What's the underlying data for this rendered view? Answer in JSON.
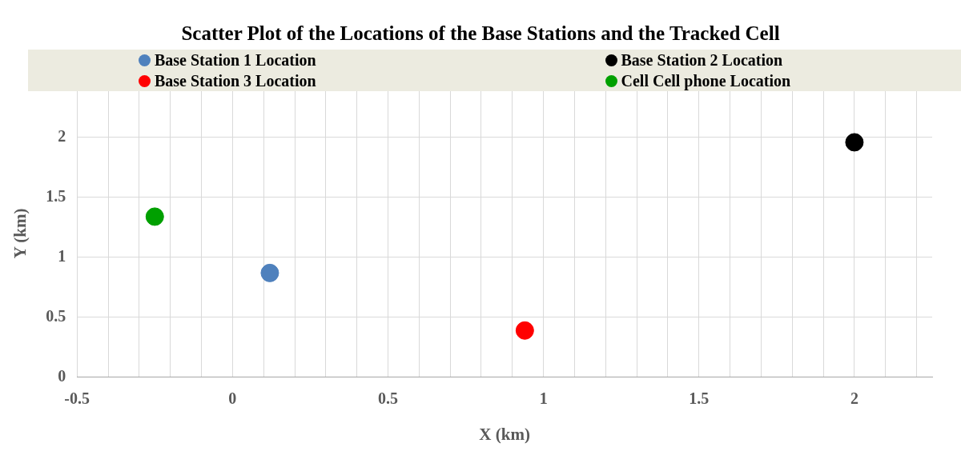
{
  "chart_data": {
    "type": "scatter",
    "title": "Scatter Plot of the Locations of the Base Stations and the Tracked Cell",
    "xlabel": "X (km)",
    "ylabel": "Y (km)",
    "series": [
      {
        "name": "Base Station 1 Location",
        "color": "#4f81bd",
        "x": [
          0.12
        ],
        "values": [
          0.87
        ]
      },
      {
        "name": "Base Station 2 Location",
        "color": "#000000",
        "x": [
          2.0
        ],
        "values": [
          1.96
        ]
      },
      {
        "name": "Base Station 3 Location",
        "color": "#ff0000",
        "x": [
          0.94
        ],
        "values": [
          0.39
        ]
      },
      {
        "name": "Cell  Cell phone Location",
        "color": "#00a000",
        "x": [
          -0.25
        ],
        "values": [
          1.34
        ]
      }
    ],
    "xlim": [
      -0.5,
      2.25
    ],
    "ylim": [
      0,
      2.4
    ],
    "xticks": [
      -0.5,
      {
        "value": -0.4,
        "label": null
      },
      {
        "value": -0.3,
        "label": null
      },
      {
        "value": -0.2,
        "label": null
      },
      {
        "value": -0.1,
        "label": null
      },
      0,
      {
        "value": 0.1,
        "label": null
      },
      {
        "value": 0.2,
        "label": null
      },
      {
        "value": 0.3,
        "label": null
      },
      {
        "value": 0.4,
        "label": null
      },
      0.5,
      {
        "value": 0.6,
        "label": null
      },
      {
        "value": 0.7,
        "label": null
      },
      {
        "value": 0.8,
        "label": null
      },
      {
        "value": 0.9,
        "label": null
      },
      1,
      {
        "value": 1.1,
        "label": null
      },
      {
        "value": 1.2,
        "label": null
      },
      {
        "value": 1.3,
        "label": null
      },
      {
        "value": 1.4,
        "label": null
      },
      1.5,
      {
        "value": 1.6,
        "label": null
      },
      {
        "value": 1.7,
        "label": null
      },
      {
        "value": 1.8,
        "label": null
      },
      {
        "value": 1.9,
        "label": null
      },
      2,
      {
        "value": 2.1,
        "label": null
      },
      {
        "value": 2.2,
        "label": null
      }
    ],
    "yticks": [
      0,
      0.5,
      1,
      1.5,
      2
    ],
    "grid": true,
    "legend": "top",
    "marker": "circle"
  }
}
